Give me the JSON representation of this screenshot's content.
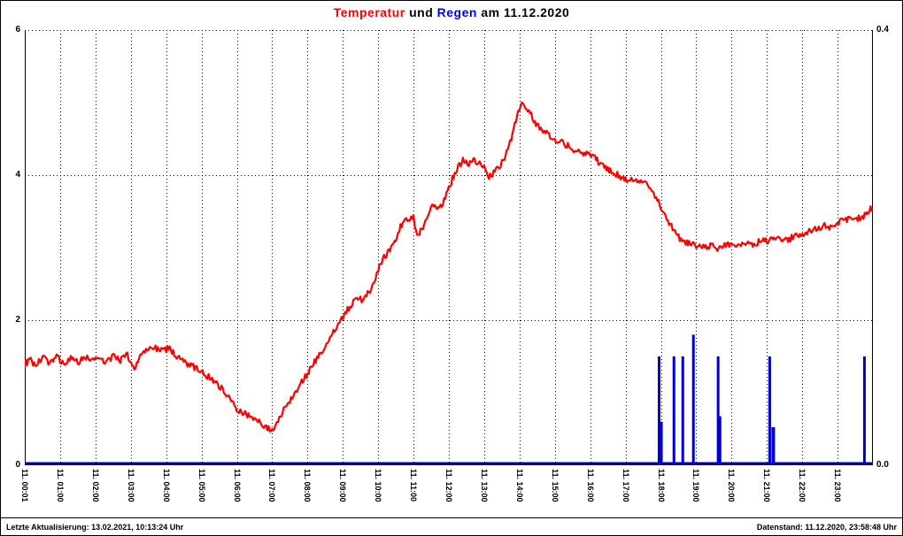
{
  "title": {
    "temperatur": "Temperatur",
    "und": " und ",
    "regen": "Regen",
    "date": " am 11.12.2020"
  },
  "footer": {
    "left": "Letzte Aktualisierung: 13.02.2021, 10:13:24 Uhr",
    "right": "Datenstand: 11.12.2020, 23:58:48 Uhr"
  },
  "colors": {
    "title_temperature": "#ff0000",
    "title_rain": "#0000ff",
    "title_text": "#000000",
    "temperature_line": "#ff0000",
    "rain_bar": "#0000cc",
    "rain_baseline": "#0000a0",
    "grid": "#000000",
    "axis": "#000000"
  },
  "chart_data": {
    "type": "line+bar",
    "title": "Temperatur und Regen am 11.12.2020",
    "legend": "none",
    "grid": "dotted",
    "x_axis": {
      "unit": "hour_of_day",
      "range_hours": [
        0,
        24
      ],
      "gridline_every_hour": true,
      "labels": [
        "11. 00:01",
        "11. 01:00",
        "11. 02:00",
        "11. 03:00",
        "11. 04:00",
        "11. 05:00",
        "11. 06:00",
        "11. 07:00",
        "11. 08:00",
        "11. 09:00",
        "11. 10:00",
        "11. 11:00",
        "11. 12:00",
        "11. 13:00",
        "11. 14:00",
        "11. 15:00",
        "11. 16:00",
        "11. 17:00",
        "11. 18:00",
        "11. 19:00",
        "11. 20:00",
        "11. 21:00",
        "11. 22:00",
        "11. 23:00"
      ],
      "label_hours": [
        0,
        1,
        2,
        3,
        4,
        5,
        6,
        7,
        8,
        9,
        10,
        11,
        12,
        13,
        14,
        15,
        16,
        17,
        18,
        19,
        20,
        21,
        22,
        23
      ]
    },
    "y_left": {
      "series": "Temperatur",
      "min": 0,
      "max": 6,
      "ticks": [
        {
          "v": 0,
          "label": "0"
        },
        {
          "v": 2,
          "label": "2"
        },
        {
          "v": 4,
          "label": "4"
        },
        {
          "v": 6,
          "label": "6"
        }
      ],
      "grid_values": [
        2,
        4,
        6
      ]
    },
    "y_right": {
      "series": "Regen",
      "min": 0,
      "max": 0.4,
      "ticks": [
        {
          "v": 0,
          "label": "0.0"
        },
        {
          "v": 0.4,
          "label": "0.4"
        }
      ]
    },
    "noise_amplitude": 0.045,
    "series": [
      {
        "name": "Temperatur",
        "type": "line",
        "axis": "left",
        "color": "#ff0000",
        "points": [
          [
            0,
            1.4
          ],
          [
            0.15,
            1.45
          ],
          [
            0.3,
            1.38
          ],
          [
            0.5,
            1.48
          ],
          [
            0.7,
            1.42
          ],
          [
            0.9,
            1.5
          ],
          [
            1.1,
            1.4
          ],
          [
            1.3,
            1.47
          ],
          [
            1.5,
            1.42
          ],
          [
            1.7,
            1.5
          ],
          [
            1.9,
            1.44
          ],
          [
            2.1,
            1.5
          ],
          [
            2.3,
            1.42
          ],
          [
            2.5,
            1.5
          ],
          [
            2.7,
            1.45
          ],
          [
            2.9,
            1.52
          ],
          [
            3,
            1.42
          ],
          [
            3.1,
            1.32
          ],
          [
            3.2,
            1.45
          ],
          [
            3.35,
            1.55
          ],
          [
            3.5,
            1.6
          ],
          [
            3.7,
            1.62
          ],
          [
            3.9,
            1.58
          ],
          [
            4.1,
            1.62
          ],
          [
            4.2,
            1.55
          ],
          [
            4.4,
            1.45
          ],
          [
            4.6,
            1.4
          ],
          [
            4.8,
            1.35
          ],
          [
            5,
            1.3
          ],
          [
            5.2,
            1.22
          ],
          [
            5.4,
            1.15
          ],
          [
            5.6,
            1.05
          ],
          [
            5.8,
            0.92
          ],
          [
            6,
            0.78
          ],
          [
            6.2,
            0.72
          ],
          [
            6.4,
            0.68
          ],
          [
            6.6,
            0.6
          ],
          [
            6.8,
            0.55
          ],
          [
            6.95,
            0.48
          ],
          [
            7.05,
            0.45
          ],
          [
            7.15,
            0.6
          ],
          [
            7.3,
            0.75
          ],
          [
            7.5,
            0.9
          ],
          [
            7.7,
            1.05
          ],
          [
            7.9,
            1.2
          ],
          [
            8.1,
            1.35
          ],
          [
            8.3,
            1.5
          ],
          [
            8.5,
            1.62
          ],
          [
            8.7,
            1.8
          ],
          [
            8.9,
            1.95
          ],
          [
            9,
            2.05
          ],
          [
            9.15,
            2.15
          ],
          [
            9.3,
            2.25
          ],
          [
            9.45,
            2.3
          ],
          [
            9.6,
            2.28
          ],
          [
            9.75,
            2.4
          ],
          [
            9.9,
            2.55
          ],
          [
            10,
            2.7
          ],
          [
            10.15,
            2.85
          ],
          [
            10.3,
            2.95
          ],
          [
            10.45,
            3.05
          ],
          [
            10.6,
            3.25
          ],
          [
            10.75,
            3.4
          ],
          [
            10.9,
            3.38
          ],
          [
            11,
            3.42
          ],
          [
            11.1,
            3.18
          ],
          [
            11.25,
            3.25
          ],
          [
            11.4,
            3.45
          ],
          [
            11.5,
            3.6
          ],
          [
            11.65,
            3.55
          ],
          [
            11.8,
            3.58
          ],
          [
            11.95,
            3.75
          ],
          [
            12.1,
            3.95
          ],
          [
            12.25,
            4.1
          ],
          [
            12.4,
            4.2
          ],
          [
            12.55,
            4.15
          ],
          [
            12.7,
            4.2
          ],
          [
            12.85,
            4.18
          ],
          [
            13,
            4.1
          ],
          [
            13.1,
            3.98
          ],
          [
            13.25,
            4.02
          ],
          [
            13.4,
            4.1
          ],
          [
            13.55,
            4.2
          ],
          [
            13.7,
            4.4
          ],
          [
            13.85,
            4.65
          ],
          [
            13.95,
            4.85
          ],
          [
            14.05,
            5
          ],
          [
            14.15,
            4.9
          ],
          [
            14.25,
            4.92
          ],
          [
            14.4,
            4.75
          ],
          [
            14.55,
            4.65
          ],
          [
            14.7,
            4.6
          ],
          [
            14.85,
            4.55
          ],
          [
            15,
            4.5
          ],
          [
            15.2,
            4.45
          ],
          [
            15.4,
            4.4
          ],
          [
            15.6,
            4.32
          ],
          [
            15.8,
            4.3
          ],
          [
            16,
            4.28
          ],
          [
            16.2,
            4.2
          ],
          [
            16.4,
            4.12
          ],
          [
            16.6,
            4.05
          ],
          [
            16.8,
            4
          ],
          [
            17,
            3.95
          ],
          [
            17.2,
            3.92
          ],
          [
            17.4,
            3.9
          ],
          [
            17.6,
            3.92
          ],
          [
            17.75,
            3.8
          ],
          [
            17.9,
            3.65
          ],
          [
            18.05,
            3.5
          ],
          [
            18.2,
            3.38
          ],
          [
            18.35,
            3.25
          ],
          [
            18.5,
            3.15
          ],
          [
            18.65,
            3.08
          ],
          [
            18.8,
            3.05
          ],
          [
            19,
            3.02
          ],
          [
            19.2,
            3
          ],
          [
            19.4,
            3.02
          ],
          [
            19.6,
            3
          ],
          [
            19.8,
            3.03
          ],
          [
            20,
            3.05
          ],
          [
            20.2,
            3.04
          ],
          [
            20.4,
            3.06
          ],
          [
            20.6,
            3.05
          ],
          [
            20.8,
            3.08
          ],
          [
            21,
            3.1
          ],
          [
            21.2,
            3.1
          ],
          [
            21.4,
            3.12
          ],
          [
            21.6,
            3.12
          ],
          [
            21.8,
            3.15
          ],
          [
            22,
            3.18
          ],
          [
            22.2,
            3.22
          ],
          [
            22.4,
            3.25
          ],
          [
            22.6,
            3.3
          ],
          [
            22.8,
            3.28
          ],
          [
            23,
            3.35
          ],
          [
            23.2,
            3.38
          ],
          [
            23.4,
            3.42
          ],
          [
            23.6,
            3.4
          ],
          [
            23.8,
            3.45
          ],
          [
            23.97,
            3.55
          ]
        ]
      },
      {
        "name": "Regen",
        "type": "bar",
        "axis": "right",
        "color": "#0000cc",
        "bars": [
          {
            "t": 17.95,
            "v": 0.1,
            "w": 3
          },
          {
            "t": 17.99,
            "v": 0.04,
            "w": 5
          },
          {
            "t": 18.37,
            "v": 0.1,
            "w": 3
          },
          {
            "t": 18.62,
            "v": 0.1,
            "w": 3
          },
          {
            "t": 18.92,
            "v": 0.12,
            "w": 3
          },
          {
            "t": 19.62,
            "v": 0.1,
            "w": 3
          },
          {
            "t": 19.66,
            "v": 0.045,
            "w": 4
          },
          {
            "t": 21.08,
            "v": 0.1,
            "w": 3
          },
          {
            "t": 21.18,
            "v": 0.035,
            "w": 4
          },
          {
            "t": 23.76,
            "v": 0.1,
            "w": 3
          }
        ]
      }
    ]
  }
}
